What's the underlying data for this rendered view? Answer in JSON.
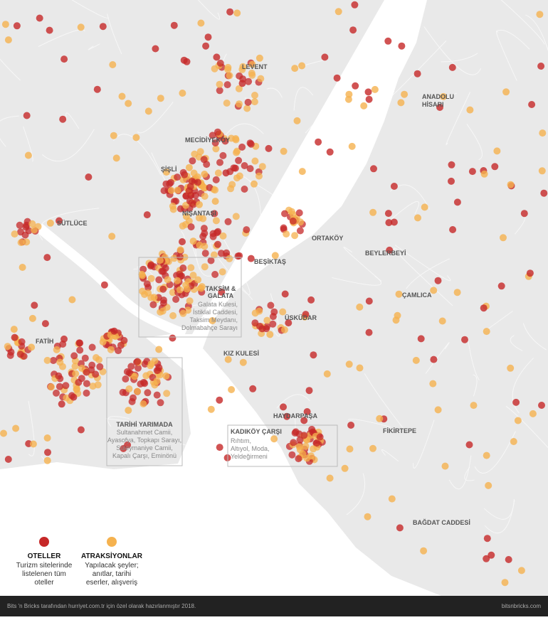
{
  "map": {
    "districts": [
      "LEVENT",
      "MECİDİYEKÖY",
      "ŞİŞLİ",
      "SÜTLÜCE",
      "NİŞANTAŞI",
      "ORTAKÖY",
      "BEYLERBEYİ",
      "BEŞİKTAŞ",
      "ÇAMLICA",
      "ÜSKÜDAR",
      "FATİH",
      "KIZ KULESİ",
      "HAYDARPAŞA",
      "FİKİRTEPE",
      "BAĞDAT CADDESİ"
    ],
    "anadolu_hisari": [
      "ANADOLU",
      "HİSARI"
    ],
    "boxes": [
      {
        "title": [
          "TAKSİM &",
          "GALATA"
        ],
        "lines": [
          "Galata Kulesi,",
          "İstiklal Caddesi,",
          "Taksim Meydanı,",
          "Dolmabahçe Sarayı"
        ]
      },
      {
        "title": [
          "TARİHİ YARIMADA"
        ],
        "lines": [
          "Sultanahmet Camii,",
          "Ayasofya, Topkapı Sarayı,",
          "Süleymaniye Camii,",
          "Kapalı Çarşı, Eminönü"
        ]
      },
      {
        "title": [
          "KADIKÖY ÇARŞI"
        ],
        "lines": [
          "Rıhtım,",
          "Altıyol, Moda,",
          "Yeldeğirmeni"
        ]
      }
    ]
  },
  "legend": [
    {
      "title": "OTELLER",
      "lines": [
        "Turizm sitelerinde",
        "listelenen tüm",
        "oteller"
      ],
      "color": "#c62828"
    },
    {
      "title": "ATRAKSİYONLAR",
      "lines": [
        "Yapılacak şeyler;",
        "anıtlar, tarihi",
        "eserler, alışveriş"
      ],
      "color": "#f5b24f"
    }
  ],
  "footer": {
    "credit": "Bits 'n Bricks tarafından hurriyet.com.tr için özel olarak hazırlanmıştır 2018.",
    "site": "bitsnbricks.com"
  }
}
